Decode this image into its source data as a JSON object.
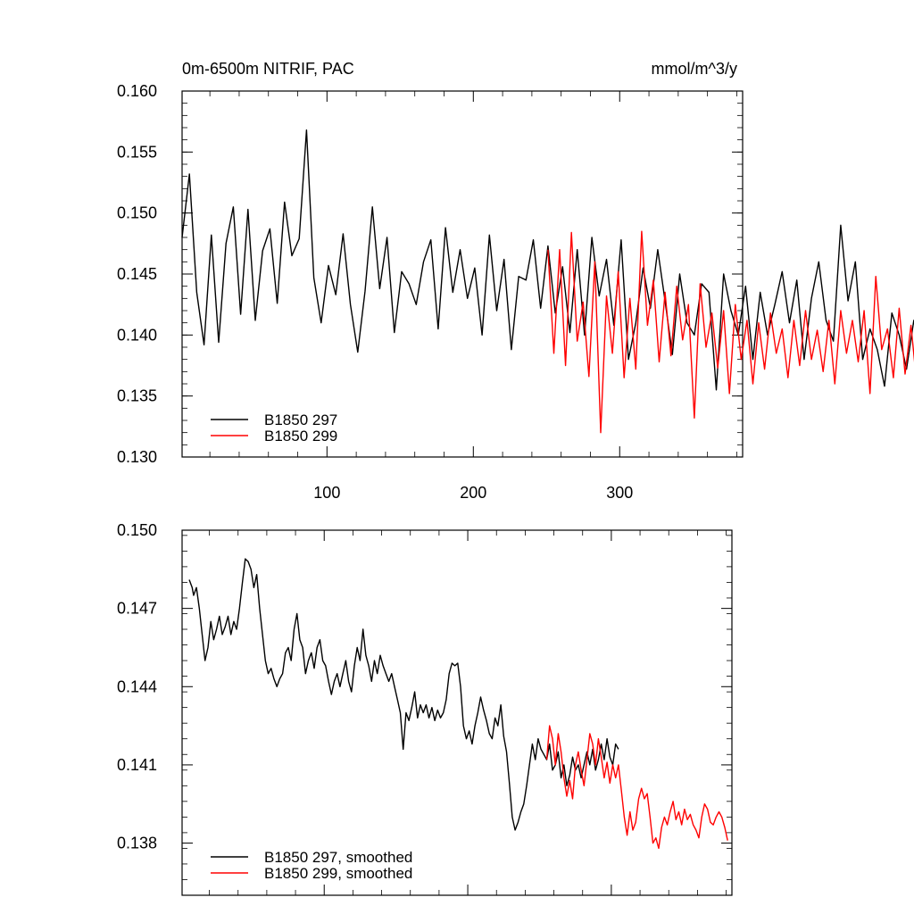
{
  "chart_data": [
    {
      "type": "line",
      "title": "0m-6500m NITRIF, PAC",
      "units": "mmol/m^3/y",
      "xlim": [
        1,
        384
      ],
      "ylim": [
        0.13,
        0.16
      ],
      "yticks": [
        "0.130",
        "0.135",
        "0.140",
        "0.145",
        "0.150",
        "0.155",
        "0.160"
      ],
      "ytick_values": [
        0.13,
        0.135,
        0.14,
        0.145,
        0.15,
        0.155,
        0.16
      ],
      "xticks": [
        "100",
        "200",
        "300"
      ],
      "xtick_values": [
        100,
        200,
        300
      ],
      "legend": "bottom-left",
      "series": [
        {
          "name": "B1850 297",
          "color": "#000000",
          "x_start": 1,
          "x_step": 5,
          "values": [
            0.148,
            0.1532,
            0.1435,
            0.1392,
            0.1482,
            0.1394,
            0.1475,
            0.1505,
            0.1417,
            0.1503,
            0.1412,
            0.1469,
            0.1487,
            0.1426,
            0.1509,
            0.1465,
            0.1479,
            0.1568,
            0.1447,
            0.141,
            0.1457,
            0.1433,
            0.1483,
            0.1425,
            0.1386,
            0.1436,
            0.1505,
            0.1438,
            0.148,
            0.1402,
            0.1452,
            0.1442,
            0.1425,
            0.146,
            0.1478,
            0.1405,
            0.1488,
            0.1435,
            0.147,
            0.143,
            0.1455,
            0.14,
            0.1482,
            0.142,
            0.1462,
            0.1388,
            0.1448,
            0.1445,
            0.1478,
            0.1422,
            0.1473,
            0.1418,
            0.1456,
            0.1402,
            0.147,
            0.14,
            0.148,
            0.1432,
            0.1462,
            0.1408,
            0.1478,
            0.138,
            0.141,
            0.1455,
            0.1422,
            0.147,
            0.1428,
            0.1384,
            0.145,
            0.141,
            0.14,
            0.1442,
            0.1435,
            0.1355,
            0.145,
            0.142,
            0.14,
            0.144,
            0.138,
            0.1435,
            0.14,
            0.1425,
            0.1452,
            0.141,
            0.1445,
            0.138,
            0.143,
            0.146,
            0.1412,
            0.1395,
            0.149,
            0.1428,
            0.146,
            0.138,
            0.1405,
            0.1388,
            0.1358,
            0.1418,
            0.14,
            0.1372,
            0.1412,
            0.138,
            0.1418,
            0.1395,
            0.1418,
            0.1402,
            0.1425,
            0.138,
            0.1438,
            0.1398,
            0.1422,
            0.1368,
            0.144,
            0.1395,
            0.1412,
            0.1378,
            0.1428,
            0.1408,
            0.144,
            0.1385,
            0.1418,
            0.1482,
            0.1405,
            0.148,
            0.1382,
            0.1414
          ]
        },
        {
          "name": "B1850 299",
          "color": "#ff0000",
          "x_start": 251,
          "x_step": 4,
          "values": [
            0.147,
            0.1385,
            0.147,
            0.1375,
            0.1484,
            0.1395,
            0.1427,
            0.1366,
            0.146,
            0.132,
            0.1432,
            0.1385,
            0.1452,
            0.1365,
            0.143,
            0.1372,
            0.1485,
            0.1408,
            0.1445,
            0.1378,
            0.1435,
            0.1383,
            0.144,
            0.1396,
            0.1425,
            0.1332,
            0.1442,
            0.139,
            0.1418,
            0.1373,
            0.142,
            0.1352,
            0.1425,
            0.138,
            0.1412,
            0.136,
            0.141,
            0.1372,
            0.1418,
            0.1385,
            0.1405,
            0.1365,
            0.1412,
            0.1375,
            0.142,
            0.138,
            0.1404,
            0.137,
            0.1412,
            0.136,
            0.142,
            0.1385,
            0.1412,
            0.1378,
            0.142,
            0.1352,
            0.1448,
            0.1388,
            0.1405,
            0.1365,
            0.1422,
            0.1368,
            0.1408,
            0.136,
            0.1418,
            0.1373,
            0.1422,
            0.1368,
            0.1404,
            0.1366,
            0.1412,
            0.1372,
            0.142,
            0.138,
            0.1398,
            0.136,
            0.141,
            0.1378,
            0.1388,
            0.1366,
            0.141,
            0.1375,
            0.14,
            0.1368,
            0.1405,
            0.137,
            0.1395,
            0.1366,
            0.139,
            0.136,
            0.1385,
            0.1366,
            0.139,
            0.1372,
            0.1395,
            0.1365,
            0.142,
            0.1385,
            0.1395,
            0.1378,
            0.1405,
            0.1388,
            0.14,
            0.1372,
            0.1392,
            0.138,
            0.1395,
            0.137,
            0.1398,
            0.1382,
            0.145,
            0.1395,
            0.1405,
            0.136,
            0.1412,
            0.1375,
            0.1422,
            0.1378,
            0.1408,
            0.1372,
            0.1405,
            0.1365,
            0.1372,
            0.138,
            0.142,
            0.1395
          ]
        }
      ]
    },
    {
      "type": "line",
      "xlim": [
        1,
        384
      ],
      "ylim": [
        0.136,
        0.15
      ],
      "yticks": [
        "0.138",
        "0.141",
        "0.144",
        "0.147",
        "0.150"
      ],
      "ytick_values": [
        0.138,
        0.141,
        0.144,
        0.147,
        0.15
      ],
      "xticks": [],
      "xtick_values": [
        100,
        200,
        300
      ],
      "legend": "bottom-left",
      "series": [
        {
          "name": "B1850 297, smoothed",
          "color": "#000000",
          "x": [
            6,
            8,
            9,
            11,
            13,
            15,
            17,
            19,
            21,
            23,
            25,
            27,
            29,
            31,
            33,
            35,
            37,
            39,
            41,
            43,
            45,
            47,
            49,
            51,
            53,
            55,
            57,
            59,
            61,
            63,
            65,
            67,
            69,
            71,
            73,
            75,
            77,
            79,
            81,
            83,
            85,
            87,
            89,
            91,
            93,
            95,
            97,
            99,
            101,
            103,
            105,
            107,
            109,
            111,
            113,
            115,
            117,
            119,
            121,
            123,
            125,
            127,
            129,
            131,
            133,
            135,
            137,
            139,
            141,
            143,
            145,
            147,
            149,
            151,
            153,
            155,
            157,
            159,
            161,
            163,
            165,
            167,
            169,
            171,
            173,
            175,
            177,
            179,
            181,
            183,
            185,
            187,
            189,
            191,
            193,
            195,
            197,
            199,
            201,
            203,
            205,
            207,
            209,
            211,
            213,
            215,
            217,
            219,
            221,
            223,
            225,
            227,
            229,
            231,
            233,
            235,
            237,
            239,
            241,
            243,
            245,
            247,
            249,
            251,
            253,
            255,
            257,
            259,
            261,
            263,
            265,
            267,
            269,
            271,
            273,
            275,
            277,
            279,
            281,
            283,
            285,
            287,
            289,
            291,
            293,
            295,
            297,
            299,
            301,
            303,
            305
          ],
          "values": [
            0.1481,
            0.1478,
            0.1475,
            0.1478,
            0.147,
            0.146,
            0.145,
            0.1455,
            0.1465,
            0.1458,
            0.1462,
            0.1467,
            0.146,
            0.1463,
            0.1467,
            0.146,
            0.1465,
            0.1462,
            0.147,
            0.148,
            0.1489,
            0.1488,
            0.1485,
            0.1478,
            0.1483,
            0.147,
            0.146,
            0.145,
            0.1445,
            0.1447,
            0.1443,
            0.144,
            0.1443,
            0.1445,
            0.1453,
            0.1455,
            0.145,
            0.1462,
            0.1468,
            0.1458,
            0.1455,
            0.1445,
            0.145,
            0.1453,
            0.1447,
            0.1455,
            0.1458,
            0.145,
            0.1448,
            0.1442,
            0.1437,
            0.1442,
            0.1445,
            0.144,
            0.1445,
            0.145,
            0.1442,
            0.1438,
            0.1448,
            0.1455,
            0.145,
            0.1462,
            0.1452,
            0.1448,
            0.1442,
            0.145,
            0.1445,
            0.1452,
            0.1448,
            0.1445,
            0.1442,
            0.1445,
            0.144,
            0.1435,
            0.143,
            0.1416,
            0.143,
            0.1427,
            0.1432,
            0.1438,
            0.1428,
            0.1433,
            0.143,
            0.1433,
            0.1428,
            0.1432,
            0.1427,
            0.1431,
            0.1428,
            0.143,
            0.1435,
            0.1445,
            0.1449,
            0.1448,
            0.1449,
            0.144,
            0.1425,
            0.142,
            0.1423,
            0.1418,
            0.1425,
            0.143,
            0.1436,
            0.1431,
            0.1427,
            0.1422,
            0.142,
            0.1428,
            0.1425,
            0.1433,
            0.1421,
            0.1415,
            0.1403,
            0.139,
            0.1385,
            0.1388,
            0.1392,
            0.1395,
            0.1402,
            0.141,
            0.1418,
            0.1412,
            0.142,
            0.1416,
            0.1414,
            0.1412,
            0.1418,
            0.1408,
            0.141,
            0.1415,
            0.1405,
            0.141,
            0.1402,
            0.1406,
            0.1413,
            0.1408,
            0.141,
            0.1405,
            0.141,
            0.1415,
            0.141,
            0.1416,
            0.1408,
            0.1412,
            0.1418,
            0.1412,
            0.142,
            0.1413,
            0.141,
            0.1418,
            0.1416
          ]
        },
        {
          "name": "B1850 299, smoothed",
          "color": "#ff0000",
          "x": [
            255,
            257,
            259,
            261,
            263,
            265,
            267,
            269,
            271,
            273,
            275,
            277,
            279,
            281,
            283,
            285,
            287,
            289,
            291,
            293,
            295,
            297,
            299,
            301,
            303,
            305,
            307,
            309,
            311,
            313,
            315,
            317,
            319,
            321,
            323,
            325,
            327,
            329,
            331,
            333,
            335,
            337,
            339,
            341,
            343,
            345,
            347,
            349,
            351,
            353,
            355,
            357,
            359,
            361,
            363,
            365,
            367,
            369,
            371,
            373,
            375,
            377,
            379,
            381
          ],
          "values": [
            0.1412,
            0.1425,
            0.142,
            0.141,
            0.1422,
            0.1415,
            0.1405,
            0.1398,
            0.1404,
            0.1397,
            0.141,
            0.1415,
            0.1408,
            0.1402,
            0.1412,
            0.1422,
            0.1418,
            0.141,
            0.142,
            0.1413,
            0.1405,
            0.1411,
            0.1403,
            0.141,
            0.1405,
            0.141,
            0.14,
            0.139,
            0.1383,
            0.1392,
            0.1385,
            0.1388,
            0.1397,
            0.1401,
            0.1397,
            0.1399,
            0.139,
            0.138,
            0.1382,
            0.1378,
            0.1386,
            0.139,
            0.1387,
            0.1392,
            0.1396,
            0.1389,
            0.1392,
            0.1387,
            0.1393,
            0.1389,
            0.1391,
            0.1387,
            0.1385,
            0.1382,
            0.139,
            0.1395,
            0.1393,
            0.1388,
            0.1387,
            0.139,
            0.1392,
            0.139,
            0.1386,
            0.1381
          ]
        }
      ]
    }
  ]
}
